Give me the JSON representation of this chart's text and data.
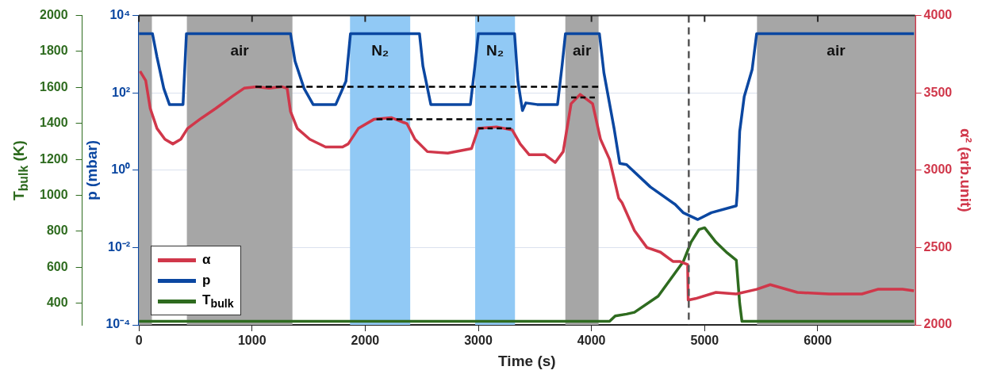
{
  "chart_data": {
    "type": "line",
    "xlabel": "Time (s)",
    "ylabel": "p (mbar)",
    "y2label": "α² (arb.unit)",
    "y3label": "T$_{bulk}$ (K)",
    "xlim": [
      0,
      6860
    ],
    "xticks": [
      0,
      1000,
      2000,
      3000,
      4000,
      5000,
      6000
    ],
    "log": "y",
    "ylim": [
      0.0001,
      10000
    ],
    "yticks": [
      {
        "value": 0.0001,
        "label": "10⁻⁴"
      },
      {
        "value": 0.01,
        "label": "10⁻²"
      },
      {
        "value": 1,
        "label": "10⁰"
      },
      {
        "value": 100,
        "label": "10²"
      },
      {
        "value": 10000,
        "label": "10⁴"
      }
    ],
    "y2lim": [
      2000,
      4000
    ],
    "y2ticks": [
      2000,
      2500,
      3000,
      3500,
      4000
    ],
    "y3lim": [
      280,
      2000
    ],
    "y3ticks": [
      400,
      600,
      800,
      1000,
      1200,
      1400,
      1600,
      1800,
      2000
    ],
    "grid": "y",
    "legend": "bottom left",
    "marker": "none",
    "line_style": "solid",
    "bands": [
      {
        "axis": "x",
        "from": 0,
        "to": 115,
        "color": "#a6a6a6"
      },
      {
        "axis": "x",
        "from": 424,
        "to": 1357,
        "label": "air",
        "color": "#a6a6a6"
      },
      {
        "axis": "x",
        "from": 1866,
        "to": 2398,
        "label": "N₂",
        "color": "#91c9f5"
      },
      {
        "axis": "x",
        "from": 2972,
        "to": 3324,
        "label": "N₂",
        "color": "#91c9f5"
      },
      {
        "axis": "x",
        "from": 3769,
        "to": 4063,
        "label": "air",
        "color": "#a6a6a6"
      },
      {
        "axis": "x",
        "from": 5463,
        "to": 6860,
        "label": "air",
        "color": "#a6a6a6"
      }
    ],
    "ref_lines": [
      {
        "axis": "x",
        "value": 4860,
        "color": "#555555",
        "line_style": "dashed"
      }
    ],
    "series": [
      {
        "name": "α",
        "color": "#d0374a",
        "axis": "y2",
        "x": [
          10,
          60,
          100,
          160,
          230,
          300,
          370,
          430,
          540,
          680,
          830,
          930,
          1040,
          1150,
          1260,
          1310,
          1340,
          1400,
          1510,
          1650,
          1800,
          1850,
          1940,
          2080,
          2230,
          2370,
          2440,
          2550,
          2730,
          2940,
          3000,
          3160,
          3300,
          3370,
          3450,
          3590,
          3680,
          3750,
          3820,
          3900,
          4010,
          4080,
          4160,
          4240,
          4270,
          4380,
          4490,
          4610,
          4720,
          4780,
          4850,
          4855,
          4920,
          5100,
          5280,
          5460,
          5580,
          5820,
          6100,
          6390,
          6530,
          6750,
          6850
        ],
        "values": [
          3640,
          3580,
          3400,
          3270,
          3200,
          3170,
          3200,
          3270,
          3330,
          3400,
          3480,
          3530,
          3540,
          3530,
          3540,
          3530,
          3380,
          3270,
          3200,
          3150,
          3150,
          3170,
          3270,
          3330,
          3340,
          3300,
          3200,
          3120,
          3110,
          3140,
          3270,
          3280,
          3260,
          3170,
          3100,
          3100,
          3050,
          3120,
          3430,
          3490,
          3430,
          3200,
          3070,
          2820,
          2790,
          2610,
          2500,
          2470,
          2410,
          2410,
          2390,
          2160,
          2170,
          2210,
          2200,
          2230,
          2260,
          2210,
          2200,
          2200,
          2230,
          2230,
          2220
        ]
      },
      {
        "name": "p",
        "color": "#0b47a1",
        "axis": "y",
        "x": [
          0,
          120,
          160,
          220,
          270,
          390,
          420,
          1340,
          1380,
          1460,
          1540,
          1740,
          1830,
          1870,
          2480,
          2510,
          2580,
          2930,
          2970,
          3000,
          3320,
          3350,
          3390,
          3420,
          3520,
          3700,
          3740,
          3770,
          4070,
          4110,
          4200,
          4250,
          4310,
          4520,
          4740,
          4810,
          4940,
          5060,
          5280,
          5290,
          5310,
          5350,
          5420,
          5460,
          6850
        ],
        "values": [
          3400,
          3400,
          840,
          130,
          50,
          50,
          3400,
          3400,
          660,
          130,
          50,
          50,
          200,
          3400,
          3400,
          500,
          50,
          50,
          500,
          3400,
          3400,
          200,
          35,
          55,
          50,
          50,
          500,
          3400,
          3400,
          330,
          12,
          1.5,
          1.4,
          0.37,
          0.13,
          0.08,
          0.053,
          0.08,
          0.12,
          0.3,
          10,
          80,
          400,
          3400,
          3400
        ]
      },
      {
        "name": "T$_{bulk}$",
        "color": "#2e6b1f",
        "axis": "y3",
        "x": [
          0,
          4160,
          4210,
          4310,
          4380,
          4590,
          4740,
          4810,
          4880,
          4950,
          5000,
          5100,
          5200,
          5280,
          5310,
          5330,
          6850
        ],
        "values": [
          300,
          300,
          330,
          340,
          350,
          440,
          570,
          630,
          740,
          810,
          820,
          740,
          680,
          640,
          400,
          300,
          300
        ]
      },
      {
        "color": "#000000",
        "axis": "y2",
        "line_style": "dashed",
        "x": [
          1030,
          4060
        ],
        "values": [
          3540,
          3540
        ]
      },
      {
        "color": "#000000",
        "axis": "y2",
        "line_style": "dashed",
        "x": [
          2100,
          3300
        ],
        "values": [
          3330,
          3330
        ]
      },
      {
        "color": "#000000",
        "axis": "y2",
        "line_style": "dashed",
        "x": [
          3000,
          3290
        ],
        "values": [
          3270,
          3270
        ]
      },
      {
        "color": "#000000",
        "axis": "y2",
        "line_style": "dashed",
        "x": [
          3820,
          4030
        ],
        "values": [
          3470,
          3470
        ]
      }
    ]
  }
}
